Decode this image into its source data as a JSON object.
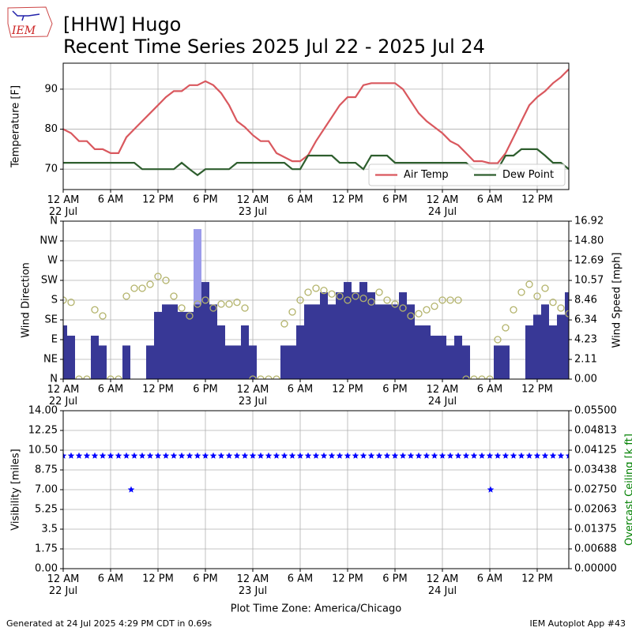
{
  "header": {
    "title": "[HHW] Hugo",
    "subtitle": "Recent Time Series 2025 Jul 22 - 2025 Jul 24"
  },
  "logo_text": "IEM",
  "footer": {
    "left": "Generated at 24 Jul 2025 4:29 PM CDT in 0.69s",
    "right": "IEM Autoplot App #43"
  },
  "chart_data": [
    {
      "type": "line",
      "ylabel": "Temperature [F]",
      "xlim": [
        0,
        64
      ],
      "ylim": [
        64.9,
        96.5
      ],
      "yticks": [
        70,
        80,
        90
      ],
      "grid": true,
      "legend": "lower right",
      "xticks": [
        {
          "value": 0,
          "label": "12 AM\n22 Jul"
        },
        {
          "value": 6,
          "label": "6 AM"
        },
        {
          "value": 12,
          "label": "12 PM"
        },
        {
          "value": 18,
          "label": "6 PM"
        },
        {
          "value": 24,
          "label": "12 AM\n23 Jul"
        },
        {
          "value": 30,
          "label": "6 AM"
        },
        {
          "value": 36,
          "label": "12 PM"
        },
        {
          "value": 42,
          "label": "6 PM"
        },
        {
          "value": 48,
          "label": "12 AM\n24 Jul"
        },
        {
          "value": 54,
          "label": "6 AM"
        },
        {
          "value": 60,
          "label": "12 PM"
        }
      ],
      "x": [
        0,
        1,
        2,
        3,
        4,
        5,
        6,
        7,
        8,
        9,
        10,
        11,
        12,
        13,
        14,
        15,
        16,
        17,
        18,
        19,
        20,
        21,
        22,
        23,
        24,
        25,
        26,
        27,
        28,
        29,
        30,
        31,
        32,
        33,
        34,
        35,
        36,
        37,
        38,
        39,
        40,
        41,
        42,
        43,
        44,
        45,
        46,
        47,
        48,
        49,
        50,
        51,
        52,
        53,
        54,
        55,
        56,
        57,
        58,
        59,
        60,
        61,
        62,
        63,
        64
      ],
      "series": [
        {
          "name": "Air Temp",
          "color": "#d9585e",
          "values": [
            80,
            79,
            77,
            77,
            75,
            75,
            74,
            74,
            78,
            80,
            82,
            84,
            86,
            88,
            89.5,
            89.5,
            91,
            91,
            92,
            91,
            89,
            86,
            82,
            80.5,
            78.5,
            77,
            77,
            74,
            73,
            72,
            72,
            73.5,
            77,
            80,
            83,
            86,
            88,
            88,
            91,
            91.5,
            91.5,
            91.5,
            91.5,
            90,
            87,
            84,
            82,
            80.5,
            79,
            77,
            76,
            74,
            72,
            72,
            71.5,
            71.5,
            74,
            78,
            82,
            86,
            88,
            89.5,
            91.5,
            93,
            95
          ]
        },
        {
          "name": "Dew Point",
          "color": "#2e5e2e",
          "values": [
            71.6,
            71.6,
            71.6,
            71.6,
            71.6,
            71.6,
            71.6,
            71.6,
            71.6,
            71.6,
            70,
            70,
            70,
            70,
            70,
            71.6,
            70,
            68.5,
            70,
            70,
            70,
            70,
            71.6,
            71.6,
            71.6,
            71.6,
            71.6,
            71.6,
            71.6,
            70,
            70,
            73.4,
            73.4,
            73.4,
            73.4,
            71.6,
            71.6,
            71.6,
            70,
            73.4,
            73.4,
            73.4,
            71.6,
            71.6,
            71.6,
            71.6,
            71.6,
            71.6,
            71.6,
            71.6,
            71.6,
            71.6,
            70,
            70,
            70,
            70,
            73.4,
            73.4,
            75,
            75,
            75,
            73.4,
            71.6,
            71.6,
            70
          ]
        }
      ]
    },
    {
      "type": "bar",
      "ylabel": "Wind Direction",
      "y2label": "Wind Speed [mph]",
      "xlim": [
        0,
        64
      ],
      "ylim": [
        0,
        360
      ],
      "yticks": [
        {
          "value": 0,
          "label": "N"
        },
        {
          "value": 45,
          "label": "NE"
        },
        {
          "value": 90,
          "label": "E"
        },
        {
          "value": 135,
          "label": "SE"
        },
        {
          "value": 180,
          "label": "S"
        },
        {
          "value": 225,
          "label": "SW"
        },
        {
          "value": 270,
          "label": "W"
        },
        {
          "value": 315,
          "label": "NW"
        },
        {
          "value": 360,
          "label": "N"
        }
      ],
      "y2lim": [
        0,
        16.92
      ],
      "y2ticks": [
        {
          "value": 0,
          "label": "0.00"
        },
        2.11,
        4.23,
        6.34,
        8.46,
        10.57,
        12.69,
        {
          "value": 14.8,
          "label": "14.80"
        },
        16.92
      ],
      "grid": true,
      "xticks": [
        {
          "value": 0,
          "label": "12 AM\n22 Jul"
        },
        {
          "value": 6,
          "label": "6 AM"
        },
        {
          "value": 12,
          "label": "12 PM"
        },
        {
          "value": 18,
          "label": "6 PM"
        },
        {
          "value": 24,
          "label": "12 AM\n23 Jul"
        },
        {
          "value": 30,
          "label": "6 AM"
        },
        {
          "value": 36,
          "label": "12 PM"
        },
        {
          "value": 42,
          "label": "6 PM"
        },
        {
          "value": 48,
          "label": "12 AM\n24 Jul"
        },
        {
          "value": 54,
          "label": "6 AM"
        },
        {
          "value": 60,
          "label": "12 PM"
        }
      ],
      "series": [
        {
          "mark": "bar",
          "axis": "y2",
          "color": "#9b9bea",
          "x": [
            17
          ],
          "values": [
            16.07
          ]
        },
        {
          "mark": "bar",
          "axis": "y2",
          "color": "#383896",
          "x": [
            0,
            1,
            2,
            3,
            4,
            5,
            6,
            7,
            8,
            9,
            10,
            11,
            12,
            13,
            14,
            15,
            16,
            17,
            18,
            19,
            20,
            21,
            22,
            23,
            24,
            25,
            26,
            27,
            28,
            29,
            30,
            31,
            32,
            33,
            34,
            35,
            36,
            37,
            38,
            39,
            40,
            41,
            42,
            43,
            44,
            45,
            46,
            47,
            48,
            49,
            50,
            51,
            52,
            53,
            54,
            55,
            56,
            57,
            58,
            59,
            60,
            61,
            62,
            63,
            64
          ],
          "values": [
            5.75,
            4.65,
            0,
            0,
            4.65,
            3.6,
            0,
            0,
            3.6,
            0,
            0,
            3.6,
            7.2,
            8,
            8,
            7.2,
            7.2,
            8,
            10.4,
            8,
            5.75,
            3.6,
            3.6,
            5.75,
            3.6,
            0,
            0,
            0,
            3.6,
            3.6,
            5.75,
            8,
            8,
            9.3,
            8,
            9.3,
            10.4,
            9.3,
            10.4,
            9.3,
            8,
            8,
            8,
            9.3,
            8,
            5.75,
            5.75,
            4.65,
            4.65,
            3.6,
            4.65,
            3.6,
            0,
            0,
            0,
            3.6,
            3.6,
            0,
            0,
            5.75,
            6.9,
            8,
            5.75,
            6.9,
            9.3
          ]
        },
        {
          "mark": "circle",
          "axis": "y",
          "color": "#b3b36b",
          "x": [
            0,
            1,
            2,
            3,
            4,
            5,
            6,
            7,
            8,
            9,
            10,
            11,
            12,
            13,
            14,
            15,
            16,
            17,
            18,
            19,
            20,
            21,
            22,
            23,
            24,
            25,
            26,
            27,
            28,
            29,
            30,
            31,
            32,
            33,
            34,
            35,
            36,
            37,
            38,
            39,
            40,
            41,
            42,
            43,
            44,
            45,
            46,
            47,
            48,
            49,
            50,
            51,
            52,
            53,
            54,
            55,
            56,
            57,
            58,
            59,
            60,
            61,
            62,
            63,
            64
          ],
          "values": [
            180,
            175,
            0,
            0,
            158,
            144,
            0,
            0,
            189,
            207,
            207,
            216,
            234,
            225,
            189,
            162,
            144,
            171,
            180,
            162,
            171,
            171,
            175,
            162,
            0,
            0,
            0,
            0,
            126,
            153,
            180,
            198,
            207,
            202,
            194,
            189,
            180,
            189,
            184,
            176,
            198,
            180,
            171,
            162,
            144,
            149,
            158,
            166,
            180,
            180,
            180,
            0,
            0,
            0,
            0,
            90,
            117,
            158,
            198,
            216,
            189,
            207,
            175,
            162,
            149
          ]
        }
      ]
    },
    {
      "type": "scatter",
      "ylabel": "Visibility [miles]",
      "y2label": "Overcast Ceiling [k ft]",
      "y2color": "#008000",
      "xlabel": "Plot Time Zone: America/Chicago",
      "xlim": [
        0,
        64
      ],
      "ylim": [
        0,
        14
      ],
      "yticks": [
        {
          "value": 0,
          "label": "0.00"
        },
        1.75,
        3.5,
        5.25,
        {
          "value": 7,
          "label": "7.00"
        },
        8.75,
        {
          "value": 10.5,
          "label": "10.50"
        },
        12.25,
        {
          "value": 14,
          "label": "14.00"
        }
      ],
      "y2lim": [
        0,
        0.055
      ],
      "y2ticks": [
        {
          "value": 0,
          "label": "0.00000"
        },
        0.00688,
        0.01375,
        0.02063,
        {
          "value": 0.0275,
          "label": "0.02750"
        },
        0.03438,
        0.04125,
        0.04813,
        {
          "value": 0.055,
          "label": "0.05500"
        }
      ],
      "grid": true,
      "xticks": [
        {
          "value": 0,
          "label": "12 AM\n22 Jul"
        },
        {
          "value": 6,
          "label": "6 AM"
        },
        {
          "value": 12,
          "label": "12 PM"
        },
        {
          "value": 18,
          "label": "6 PM"
        },
        {
          "value": 24,
          "label": "12 AM\n23 Jul"
        },
        {
          "value": 30,
          "label": "6 AM"
        },
        {
          "value": 36,
          "label": "12 PM"
        },
        {
          "value": 42,
          "label": "6 PM"
        },
        {
          "value": 48,
          "label": "12 AM\n24 Jul"
        },
        {
          "value": 54,
          "label": "6 AM"
        },
        {
          "value": 60,
          "label": "12 PM"
        }
      ],
      "series": [
        {
          "mark": "star",
          "axis": "y",
          "color": "#0000ff",
          "x": [
            0,
            1,
            2,
            3,
            4,
            5,
            6,
            7,
            8,
            9,
            10,
            11,
            12,
            13,
            14,
            15,
            16,
            17,
            18,
            19,
            20,
            21,
            22,
            23,
            24,
            25,
            26,
            27,
            28,
            29,
            30,
            31,
            32,
            33,
            34,
            35,
            36,
            37,
            38,
            39,
            40,
            41,
            42,
            43,
            44,
            45,
            46,
            47,
            48,
            49,
            50,
            51,
            52,
            53,
            54,
            55,
            56,
            57,
            58,
            59,
            60,
            61,
            62,
            63,
            64
          ],
          "values": [
            10,
            10,
            10,
            10,
            10,
            10,
            10,
            10,
            10,
            10,
            10,
            10,
            10,
            10,
            10,
            10,
            10,
            10,
            10,
            10,
            10,
            10,
            10,
            10,
            10,
            10,
            10,
            10,
            10,
            10,
            10,
            10,
            10,
            10,
            10,
            10,
            10,
            10,
            10,
            10,
            10,
            10,
            10,
            10,
            10,
            10,
            10,
            10,
            10,
            10,
            10,
            10,
            10,
            10,
            10,
            10,
            10,
            10,
            10,
            10,
            10,
            10,
            10,
            10,
            10
          ]
        },
        {
          "mark": "star",
          "axis": "y",
          "color": "#0000ff",
          "x": [
            8.6,
            54.1
          ],
          "values": [
            7,
            7
          ]
        }
      ]
    }
  ]
}
